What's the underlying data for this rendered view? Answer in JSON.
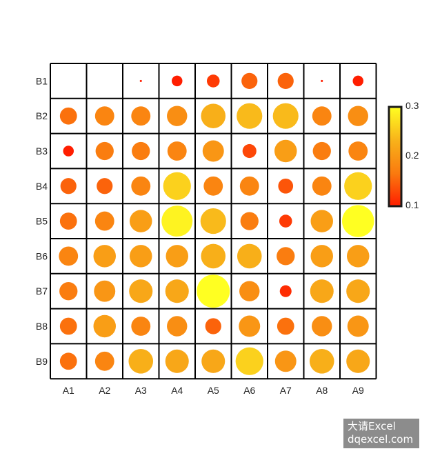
{
  "chart_data": {
    "type": "heatmap",
    "x_categories": [
      "A1",
      "A2",
      "A3",
      "A4",
      "A5",
      "A6",
      "A7",
      "A8",
      "A9"
    ],
    "y_categories": [
      "B1",
      "B2",
      "B3",
      "B4",
      "B5",
      "B6",
      "B7",
      "B8",
      "B9"
    ],
    "values": [
      [
        0.0,
        0.0,
        0.02,
        0.1,
        0.12,
        0.15,
        0.15,
        0.02,
        0.1
      ],
      [
        0.16,
        0.18,
        0.18,
        0.19,
        0.23,
        0.24,
        0.24,
        0.18,
        0.19
      ],
      [
        0.1,
        0.17,
        0.17,
        0.18,
        0.2,
        0.13,
        0.21,
        0.17,
        0.18
      ],
      [
        0.15,
        0.15,
        0.18,
        0.26,
        0.18,
        0.18,
        0.14,
        0.18,
        0.26
      ],
      [
        0.16,
        0.18,
        0.21,
        0.29,
        0.24,
        0.17,
        0.12,
        0.21,
        0.3
      ],
      [
        0.18,
        0.21,
        0.21,
        0.21,
        0.23,
        0.23,
        0.17,
        0.21,
        0.21
      ],
      [
        0.17,
        0.2,
        0.22,
        0.22,
        0.31,
        0.19,
        0.11,
        0.22,
        0.22
      ],
      [
        0.16,
        0.21,
        0.18,
        0.19,
        0.15,
        0.2,
        0.16,
        0.19,
        0.2
      ],
      [
        0.16,
        0.18,
        0.23,
        0.22,
        0.22,
        0.26,
        0.2,
        0.23,
        0.22
      ]
    ],
    "colorbar": {
      "ticks": [
        "0.3",
        "0.2",
        "0.1"
      ],
      "min": 0.1,
      "max": 0.3,
      "colors": [
        "#ff1e00",
        "#fa7a0f",
        "#f8b21a",
        "#ffff22"
      ]
    },
    "grid": true,
    "title": "",
    "xlabel": "",
    "ylabel": ""
  },
  "watermark": {
    "line1": "大请Excel",
    "line2": "dqexcel.com"
  }
}
